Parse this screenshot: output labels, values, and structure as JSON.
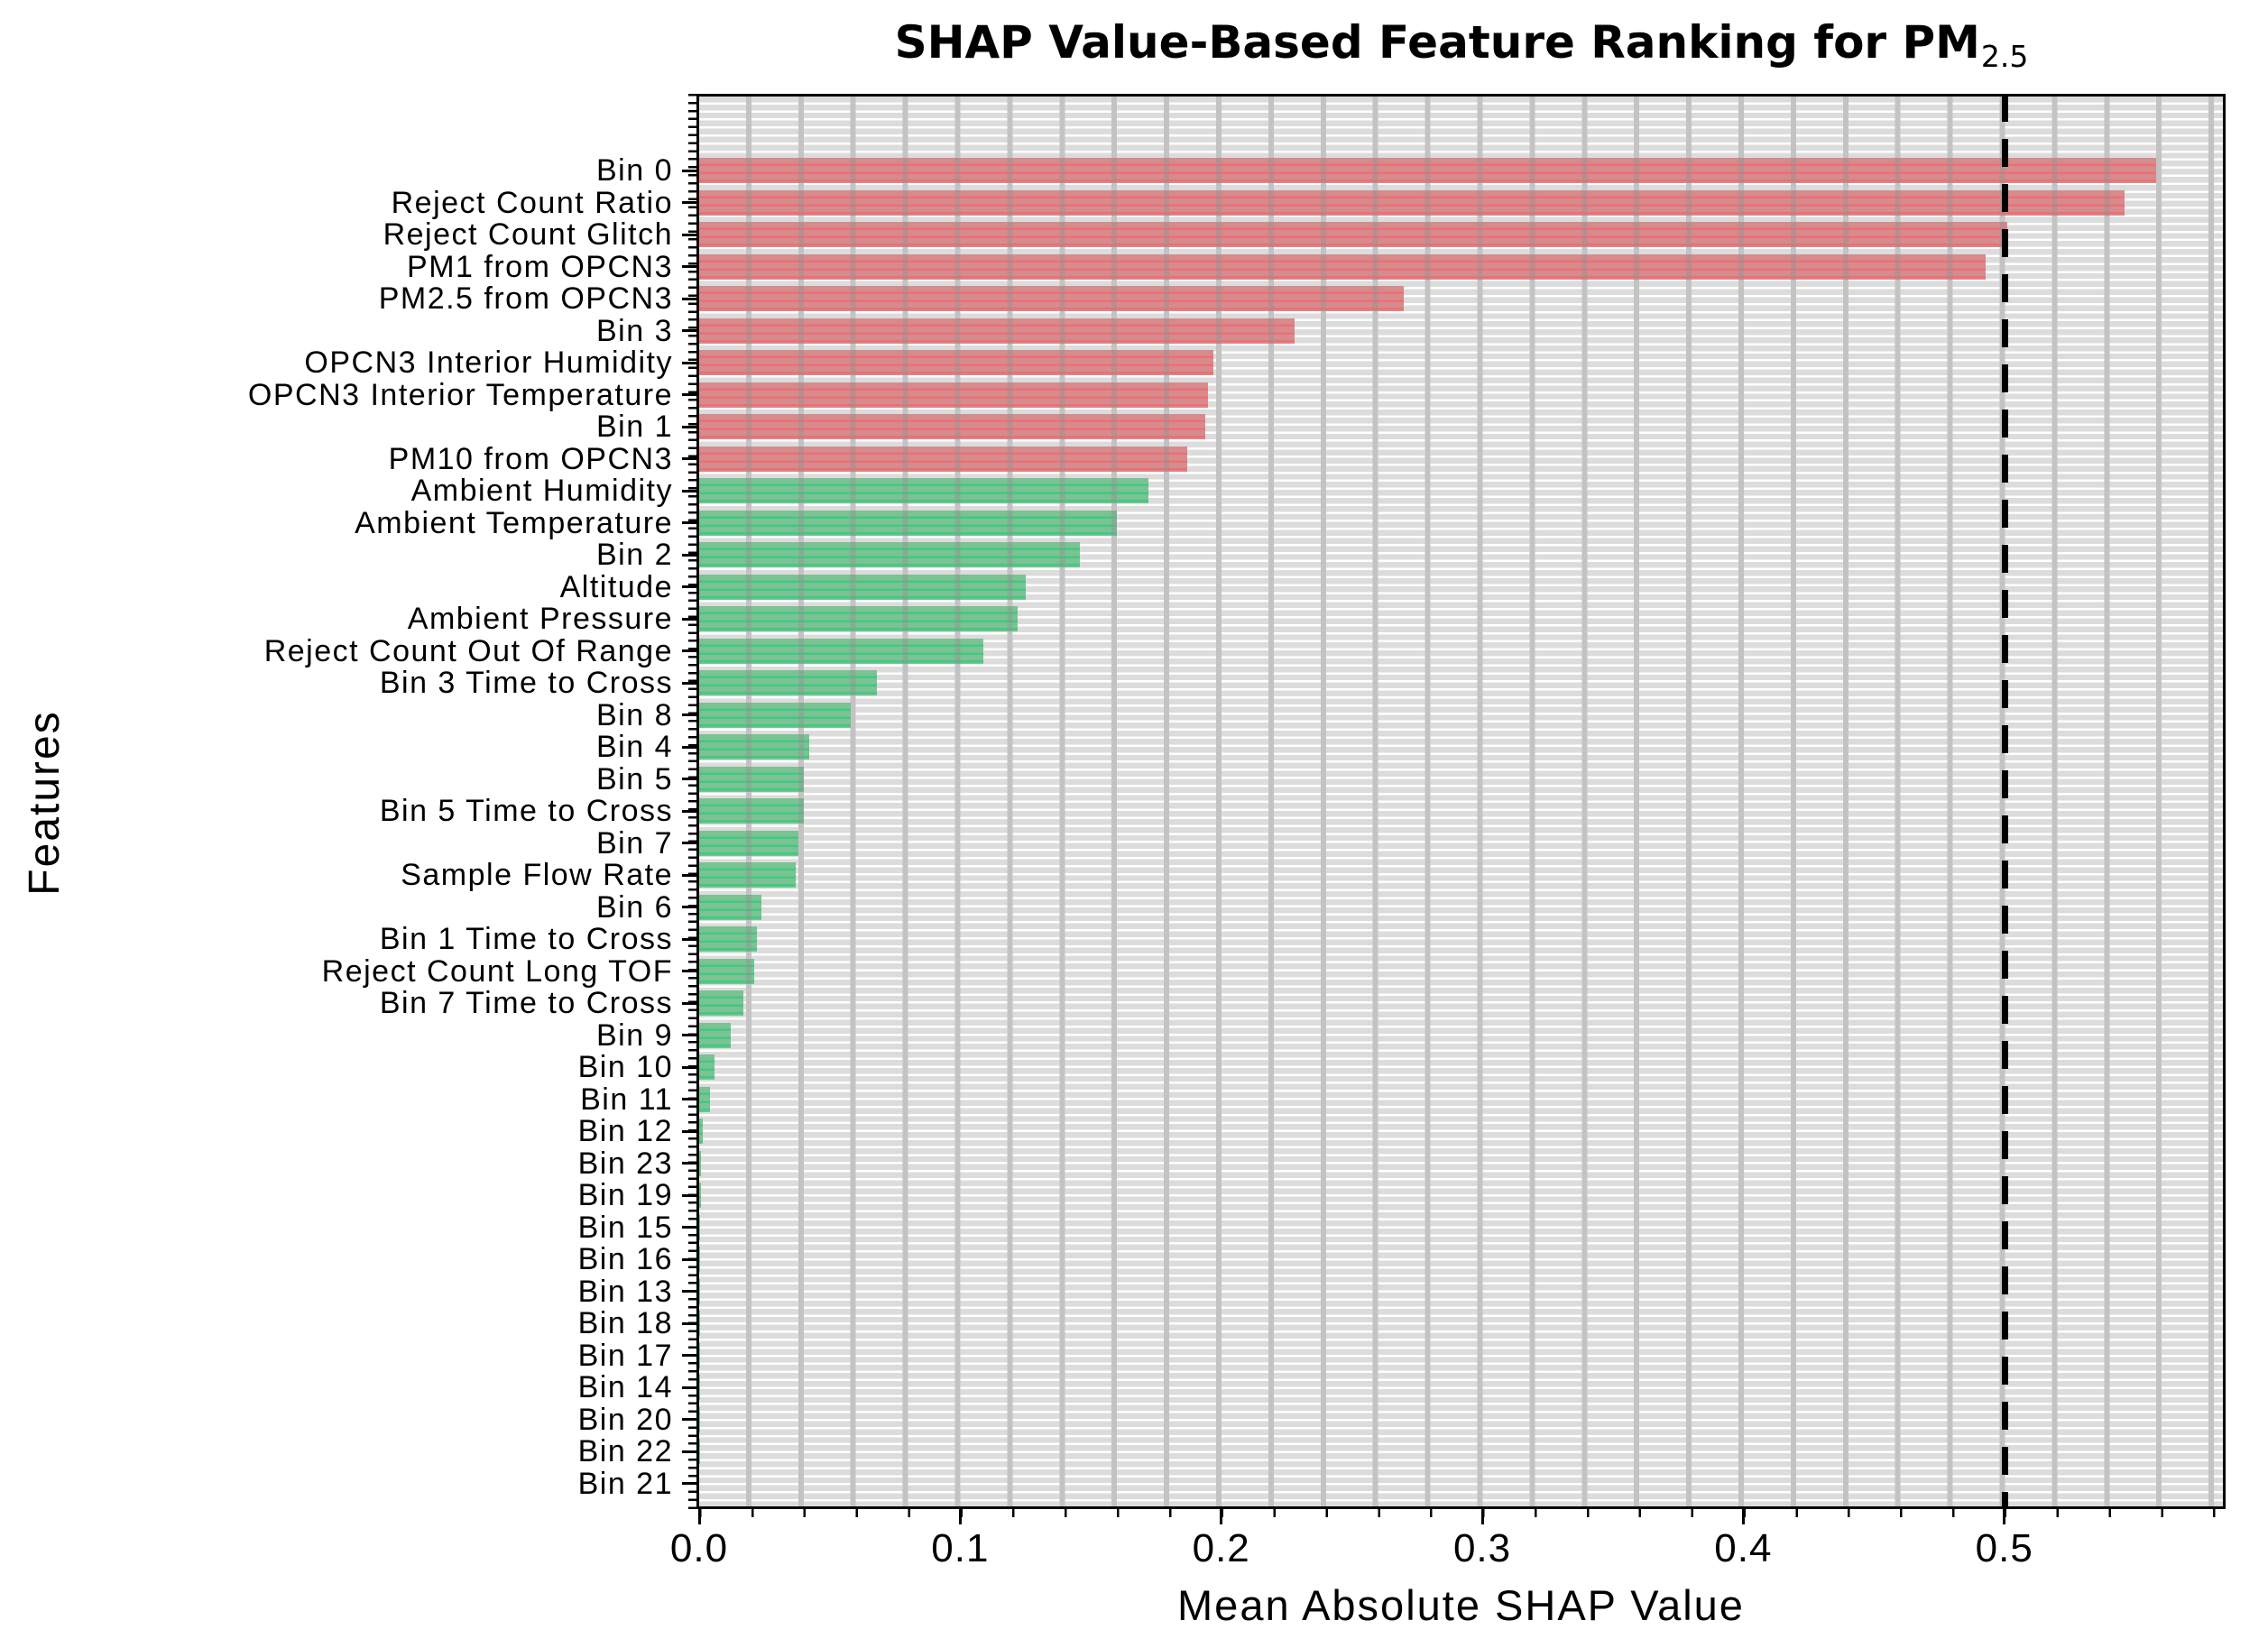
{
  "title": {
    "text": "SHAP Value-Based Feature Ranking for PM",
    "subscript": "2.5"
  },
  "chart_data": {
    "type": "bar",
    "orientation": "horizontal",
    "title": "SHAP Value-Based Feature Ranking for PM2.5",
    "xlabel": "Mean Absolute SHAP Value",
    "ylabel": "Features",
    "xlim": [
      0,
      0.5856
    ],
    "x_tick_labels": [
      "0.0",
      "0.1",
      "0.2",
      "0.3",
      "0.4",
      "0.5"
    ],
    "x_tick_values": [
      0.0,
      0.1,
      0.2,
      0.3,
      0.4,
      0.5
    ],
    "grid": {
      "on": true,
      "vertical_minor_interval": 0.02
    },
    "reference_line": {
      "value": 0.5,
      "style": "dashed",
      "color": "#000000"
    },
    "legend": "none",
    "categories": [
      "Bin 0",
      "Reject Count Ratio",
      "Reject Count Glitch",
      "PM1 from OPCN3",
      "PM2.5 from OPCN3",
      "Bin 3",
      "OPCN3 Interior Humidity",
      "OPCN3 Interior Temperature",
      "Bin 1",
      "PM10 from OPCN3",
      "Ambient Humidity",
      "Ambient Temperature",
      "Bin 2",
      "Altitude",
      "Ambient Pressure",
      "Reject Count Out Of Range",
      "Bin 3 Time to Cross",
      "Bin 8",
      "Bin 4",
      "Bin 5",
      "Bin 5 Time to Cross",
      "Bin 7",
      "Sample Flow Rate",
      "Bin 6",
      "Bin 1 Time to Cross",
      "Reject Count Long TOF",
      "Bin 7 Time to Cross",
      "Bin 9",
      "Bin 10",
      "Bin 11",
      "Bin 12",
      "Bin 23",
      "Bin 19",
      "Bin 15",
      "Bin 16",
      "Bin 13",
      "Bin 18",
      "Bin 17",
      "Bin 14",
      "Bin 20",
      "Bin 22",
      "Bin 21"
    ],
    "values": [
      0.558,
      0.546,
      0.501,
      0.493,
      0.27,
      0.228,
      0.197,
      0.195,
      0.194,
      0.187,
      0.172,
      0.16,
      0.146,
      0.125,
      0.122,
      0.109,
      0.068,
      0.058,
      0.042,
      0.04,
      0.04,
      0.038,
      0.037,
      0.024,
      0.022,
      0.021,
      0.017,
      0.012,
      0.006,
      0.004,
      0.0015,
      0.0008,
      0.0006,
      0.0005,
      0.0005,
      0.0004,
      0.0004,
      0.0003,
      0.0003,
      0.0002,
      0.0002,
      0.0001
    ],
    "bar_colors": [
      "red",
      "red",
      "red",
      "red",
      "red",
      "red",
      "red",
      "red",
      "red",
      "red",
      "green",
      "green",
      "green",
      "green",
      "green",
      "green",
      "green",
      "green",
      "green",
      "green",
      "green",
      "green",
      "green",
      "green",
      "green",
      "green",
      "green",
      "green",
      "green",
      "green",
      "green",
      "green",
      "green",
      "green",
      "green",
      "green",
      "green",
      "green",
      "green",
      "green",
      "green",
      "green"
    ],
    "colors": {
      "red-base": "#d68b8f",
      "red-stripe": "#ee6f71",
      "green-base": "#7bc295",
      "green-stripe": "#41c980",
      "plot-bg": "#dcdcdc",
      "grid-vertical": "#c3c3c3",
      "grid-horizontal": "#ffffff",
      "reference": "#000000"
    }
  }
}
